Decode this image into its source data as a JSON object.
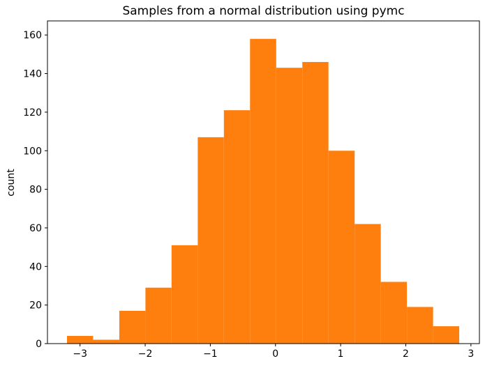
{
  "figure": {
    "background": "#ffffff"
  },
  "chart_data": {
    "type": "bar",
    "subtype": "histogram",
    "title": "Samples from a normal distribution using pymc",
    "xlabel": "",
    "ylabel": "count",
    "bar_color": "#ff7f0e",
    "axis_color": "#000000",
    "text_color": "#000000",
    "grid": false,
    "legend": "none",
    "xlim": [
      -3.5,
      3.13
    ],
    "ylim": [
      0,
      167.3
    ],
    "bin_edges": [
      -3.2,
      -2.799,
      -2.397,
      -1.996,
      -1.595,
      -1.193,
      -0.792,
      -0.391,
      0.011,
      0.412,
      0.813,
      1.215,
      1.616,
      2.017,
      2.419,
      2.82
    ],
    "counts": [
      4,
      2,
      17,
      29,
      51,
      107,
      121,
      158,
      143,
      146,
      100,
      62,
      32,
      19,
      9
    ],
    "x_ticks": [
      -3,
      -2,
      -1,
      0,
      1,
      2,
      3
    ],
    "x_tick_labels": [
      "−3",
      "−2",
      "−1",
      "0",
      "1",
      "2",
      "3"
    ],
    "y_ticks": [
      0,
      20,
      40,
      60,
      80,
      100,
      120,
      140,
      160
    ],
    "y_tick_labels": [
      "0",
      "20",
      "40",
      "60",
      "80",
      "100",
      "120",
      "140",
      "160"
    ]
  }
}
